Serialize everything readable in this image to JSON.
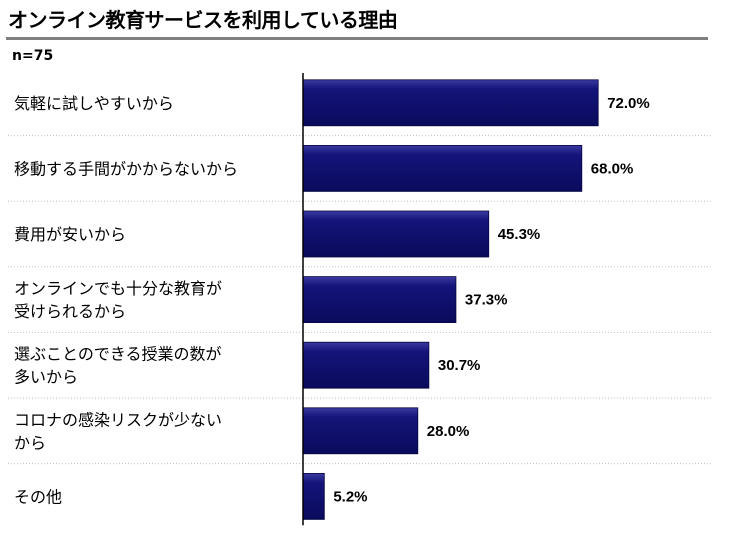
{
  "chart_data": {
    "type": "bar",
    "orientation": "horizontal",
    "title": "オンライン教育サービスを利用している理由",
    "sample_size": "n=75",
    "categories": [
      [
        "気軽に試しやすいから"
      ],
      [
        "移動する手間がかからないから"
      ],
      [
        "費用が安いから"
      ],
      [
        "オンラインでも十分な教育が",
        "受けられるから"
      ],
      [
        "選ぶことのできる授業の数が",
        "多いから"
      ],
      [
        "コロナの感染リスクが少ない",
        "から"
      ],
      [
        "その他"
      ]
    ],
    "values": [
      72.0,
      68.0,
      45.3,
      37.3,
      30.7,
      28.0,
      5.2
    ],
    "value_labels": [
      "72.0%",
      "68.0%",
      "45.3%",
      "37.3%",
      "30.7%",
      "28.0%",
      "5.2%"
    ],
    "unit": "%",
    "xlim": [
      0,
      100
    ],
    "bar_color": "#10106e",
    "title_rule_color": "#7f7f7f",
    "separator_color": "#c0c0c0"
  }
}
